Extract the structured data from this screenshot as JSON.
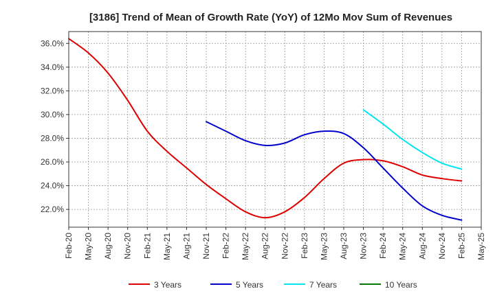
{
  "chart_data": {
    "type": "line",
    "title": "[3186]  Trend of Mean of Growth Rate (YoY) of 12Mo Mov Sum of Revenues",
    "xlabel": "",
    "ylabel": "",
    "ylim": [
      20.5,
      37.0
    ],
    "grid": true,
    "legend_position": "bottom",
    "x_tick_labels": [
      "Feb-20",
      "May-20",
      "Aug-20",
      "Nov-20",
      "Feb-21",
      "May-21",
      "Aug-21",
      "Nov-21",
      "Feb-22",
      "May-22",
      "Aug-22",
      "Nov-22",
      "Feb-23",
      "May-23",
      "Aug-23",
      "Nov-23",
      "Feb-24",
      "May-24",
      "Aug-24",
      "Nov-24",
      "Feb-25",
      "May-25"
    ],
    "y_ticks": [
      22.0,
      24.0,
      26.0,
      28.0,
      30.0,
      32.0,
      34.0,
      36.0
    ],
    "y_tick_labels": [
      "22.0%",
      "24.0%",
      "26.0%",
      "28.0%",
      "30.0%",
      "32.0%",
      "34.0%",
      "36.0%"
    ],
    "series": [
      {
        "name": "3 Years",
        "color": "#dd0000",
        "points": [
          [
            0,
            36.4
          ],
          [
            1,
            35.2
          ],
          [
            2,
            33.5
          ],
          [
            3,
            31.2
          ],
          [
            4,
            28.6
          ],
          [
            5,
            26.9
          ],
          [
            6,
            25.5
          ],
          [
            7,
            24.1
          ],
          [
            8,
            22.9
          ],
          [
            9,
            21.8
          ],
          [
            10,
            21.3
          ],
          [
            11,
            21.8
          ],
          [
            12,
            23.0
          ],
          [
            13,
            24.6
          ],
          [
            14,
            25.9
          ],
          [
            15,
            26.2
          ],
          [
            16,
            26.1
          ],
          [
            17,
            25.6
          ],
          [
            18,
            24.9
          ],
          [
            19,
            24.6
          ],
          [
            20,
            24.4
          ]
        ]
      },
      {
        "name": "5 Years",
        "color": "#0000cc",
        "points": [
          [
            7,
            29.4
          ],
          [
            8,
            28.6
          ],
          [
            9,
            27.8
          ],
          [
            10,
            27.4
          ],
          [
            11,
            27.6
          ],
          [
            12,
            28.3
          ],
          [
            13,
            28.6
          ],
          [
            14,
            28.4
          ],
          [
            15,
            27.2
          ],
          [
            16,
            25.5
          ],
          [
            17,
            23.8
          ],
          [
            18,
            22.3
          ],
          [
            19,
            21.5
          ],
          [
            20,
            21.1
          ]
        ]
      },
      {
        "name": "7 Years",
        "color": "#00e5ee",
        "points": [
          [
            15,
            30.4
          ],
          [
            16,
            29.2
          ],
          [
            17,
            27.9
          ],
          [
            18,
            26.8
          ],
          [
            19,
            25.9
          ],
          [
            20,
            25.4
          ]
        ]
      },
      {
        "name": "10 Years",
        "color": "#007700",
        "points": []
      }
    ]
  }
}
